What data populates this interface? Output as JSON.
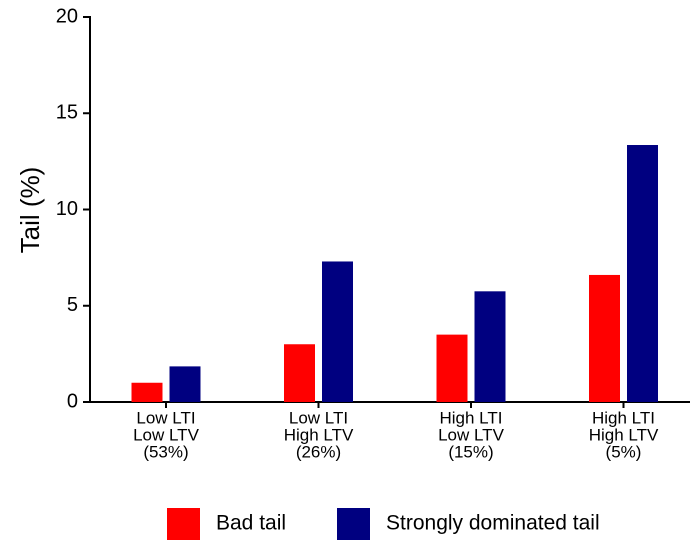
{
  "chart_data": {
    "type": "bar",
    "y_label": "Tail (%)",
    "categories": [
      [
        "Low LTI",
        "Low LTV",
        "(53%)"
      ],
      [
        "Low LTI",
        "High LTV",
        "(26%)"
      ],
      [
        "High LTI",
        "Low LTV",
        "(15%)"
      ],
      [
        "High LTI",
        "High LTV",
        "(5%)"
      ]
    ],
    "series": [
      {
        "name": "Bad tail",
        "color": "#ff0000",
        "values": [
          1.0,
          3.0,
          3.5,
          6.6
        ]
      },
      {
        "name": "Strongly dominated tail",
        "color": "#000080",
        "values": [
          1.85,
          7.3,
          5.75,
          13.35
        ]
      }
    ],
    "ylim": [
      0,
      20
    ],
    "yticks": [
      0,
      5,
      10,
      15,
      20
    ],
    "grid": false,
    "legend": "bottom"
  }
}
